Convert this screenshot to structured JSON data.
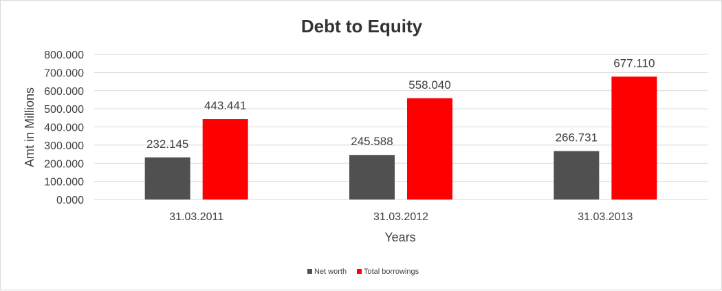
{
  "chart_data": {
    "type": "bar",
    "title": "Debt to Equity",
    "xlabel": "Years",
    "ylabel": "Amt in Millions",
    "categories": [
      "31.03.2011",
      "31.03.2012",
      "31.03.2013"
    ],
    "series": [
      {
        "name": "Net worth",
        "color": "#505050",
        "values": [
          232.145,
          245.588,
          266.731
        ],
        "labels": [
          "232.145",
          "245.588",
          "266.731"
        ]
      },
      {
        "name": "Total borrowings",
        "color": "#ff0000",
        "values": [
          443.441,
          558.04,
          677.11
        ],
        "labels": [
          "443.441",
          "558.040",
          "677.110"
        ]
      }
    ],
    "ylim": [
      0,
      800
    ],
    "ytick_values": [
      0,
      100,
      200,
      300,
      400,
      500,
      600,
      700,
      800
    ],
    "ytick_labels": [
      "0.000",
      "100.000",
      "200.000",
      "300.000",
      "400.000",
      "500.000",
      "600.000",
      "700.000",
      "800.000"
    ],
    "grid": true,
    "legend_position": "bottom"
  }
}
